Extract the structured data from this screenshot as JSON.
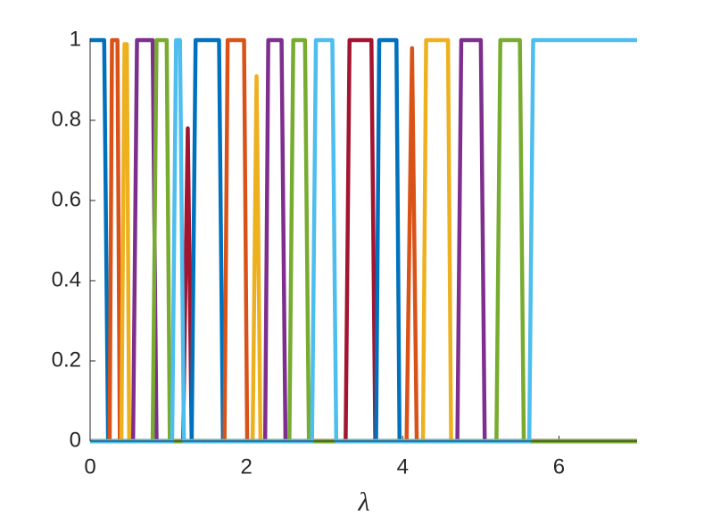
{
  "chart_data": {
    "type": "line",
    "x_label": "λ",
    "xlim": [
      0,
      7
    ],
    "ylim": [
      0,
      1
    ],
    "xticks": [
      0,
      2,
      4,
      6
    ],
    "yticks": [
      0,
      0.2,
      0.4,
      0.6,
      0.8,
      1
    ],
    "series": [
      {
        "color": "#A2142F",
        "x": [
          0,
          1.19,
          1.25,
          1.3,
          3.27,
          3.32,
          3.6,
          3.65,
          7
        ],
        "values": [
          0,
          0,
          0.78,
          0,
          0,
          1,
          1,
          0,
          0
        ]
      },
      {
        "color": "#0072BD",
        "x": [
          0,
          0.18,
          0.23,
          1.3,
          1.35,
          1.65,
          1.7,
          3.66,
          3.7,
          3.92,
          3.96,
          7
        ],
        "values": [
          1,
          1,
          0,
          0,
          1,
          1,
          0,
          0,
          1,
          1,
          0,
          0
        ]
      },
      {
        "color": "#D95319",
        "x": [
          0,
          0.25,
          0.28,
          0.35,
          0.38,
          1.72,
          1.76,
          1.97,
          2.01,
          4.05,
          4.12,
          4.18,
          7
        ],
        "values": [
          0,
          0,
          1,
          1,
          0,
          0,
          1,
          1,
          0,
          0,
          0.98,
          0,
          0
        ]
      },
      {
        "color": "#EDB120",
        "x": [
          0,
          0.4,
          0.44,
          0.47,
          0.5,
          2.08,
          2.13,
          2.18,
          4.26,
          4.3,
          4.58,
          4.62,
          7
        ],
        "values": [
          0,
          0,
          0.99,
          0.99,
          0,
          0,
          0.91,
          0,
          0,
          1,
          1,
          0,
          0
        ]
      },
      {
        "color": "#7E2F8E",
        "x": [
          0,
          0.55,
          0.6,
          0.8,
          0.85,
          2.24,
          2.28,
          2.45,
          2.5,
          4.7,
          4.75,
          5.0,
          5.05,
          7
        ],
        "values": [
          0,
          0,
          1,
          1,
          0,
          0,
          1,
          1,
          0,
          0,
          1,
          1,
          0,
          0
        ]
      },
      {
        "color": "#77AC30",
        "x": [
          0,
          0.8,
          0.85,
          0.98,
          1.02,
          2.55,
          2.6,
          2.75,
          2.8,
          5.2,
          5.25,
          5.5,
          5.55,
          7
        ],
        "values": [
          0,
          0,
          1,
          1,
          0,
          0,
          1,
          1,
          0,
          0,
          1,
          1,
          0,
          0
        ]
      },
      {
        "color": "#4DBEEE",
        "x": [
          0,
          1.05,
          1.1,
          1.15,
          1.2,
          2.84,
          2.89,
          3.1,
          3.15,
          5.62,
          5.67,
          7
        ],
        "values": [
          0,
          0,
          1,
          1,
          0,
          0,
          1,
          1,
          0,
          0,
          1,
          1
        ]
      }
    ]
  }
}
